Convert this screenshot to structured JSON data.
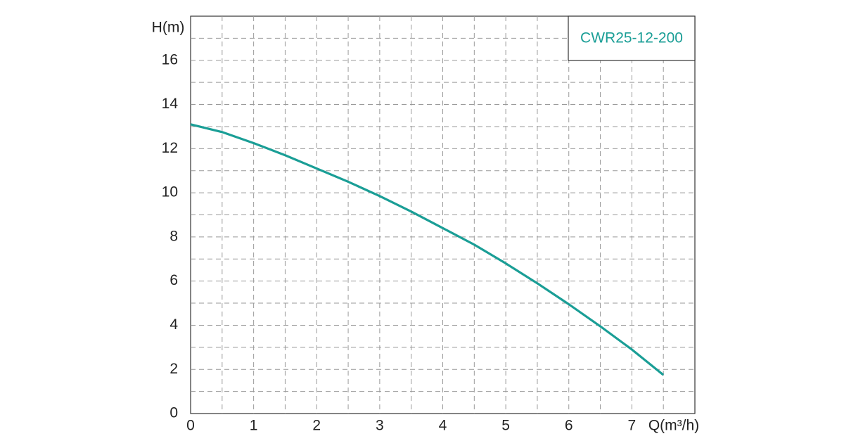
{
  "chart_data": {
    "type": "line",
    "x_label": "Q(m³/h)",
    "y_label": "H(m)",
    "x": [
      0,
      0.5,
      1,
      1.5,
      2,
      2.5,
      3,
      3.5,
      4,
      4.5,
      5,
      5.5,
      6,
      6.5,
      7,
      7.5
    ],
    "series": [
      {
        "name": "CWR25-12-200",
        "color": "#1a9e96",
        "values": [
          13.1,
          12.75,
          12.25,
          11.7,
          11.1,
          10.5,
          9.85,
          9.15,
          8.4,
          7.65,
          6.8,
          5.9,
          4.95,
          3.95,
          2.9,
          1.75
        ]
      }
    ],
    "xlim": [
      0,
      8
    ],
    "xticks": [
      0,
      1,
      2,
      3,
      4,
      5,
      6,
      7
    ],
    "ylim": [
      0,
      18
    ],
    "yticks": [
      0,
      2,
      4,
      6,
      8,
      10,
      12,
      14,
      16
    ],
    "grid": true,
    "legend": "upper right"
  }
}
